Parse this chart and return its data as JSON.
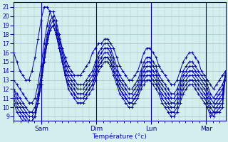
{
  "title": "",
  "xlabel": "Température (°c)",
  "ylabel": "",
  "bg_color": "#d4eeed",
  "grid_color": "#a8cccc",
  "line_color": "#0000bb",
  "marker": "+",
  "ylim": [
    8.5,
    21.5
  ],
  "yticks": [
    9,
    10,
    11,
    12,
    13,
    14,
    15,
    16,
    17,
    18,
    19,
    20,
    21
  ],
  "xtick_labels": [
    "Sam",
    "Dim",
    "Lun",
    "Mar"
  ],
  "xtick_positions": [
    24,
    72,
    120,
    168
  ],
  "xlim": [
    0,
    185
  ],
  "n_hours": 185,
  "curves": [
    [
      16.0,
      15.0,
      14.0,
      13.5,
      13.0,
      13.0,
      14.0,
      15.5,
      17.5,
      19.5,
      21.0,
      21.0,
      20.5,
      19.5,
      18.5,
      17.5,
      16.5,
      15.5,
      14.5,
      14.0,
      13.5,
      13.5,
      13.5,
      14.0,
      14.5,
      15.0,
      16.0,
      16.5,
      17.0,
      17.0,
      17.5,
      17.5,
      17.0,
      16.5,
      15.5,
      14.5,
      14.0,
      13.5,
      13.0,
      13.0,
      13.5,
      14.0,
      15.0,
      16.0,
      16.5,
      16.5,
      16.0,
      15.5,
      14.5,
      14.0,
      13.5,
      13.0,
      12.5,
      12.5,
      13.0,
      14.0,
      15.0,
      15.5,
      16.0,
      16.0,
      15.5,
      15.0,
      14.0,
      13.5,
      13.0,
      12.5,
      12.0,
      12.5,
      13.0,
      13.5,
      14.0
    ],
    [
      13.0,
      12.5,
      12.0,
      11.5,
      11.0,
      10.5,
      10.5,
      11.0,
      12.5,
      14.5,
      17.0,
      19.0,
      20.5,
      20.5,
      19.5,
      18.0,
      16.5,
      15.0,
      14.0,
      13.5,
      13.0,
      12.5,
      12.5,
      12.5,
      13.0,
      13.5,
      14.0,
      15.0,
      16.0,
      16.5,
      17.0,
      17.0,
      16.5,
      15.5,
      14.5,
      13.5,
      13.0,
      12.5,
      12.0,
      12.0,
      12.5,
      13.0,
      14.0,
      15.0,
      15.5,
      15.5,
      15.0,
      14.5,
      13.5,
      13.0,
      12.5,
      12.0,
      11.5,
      11.5,
      12.0,
      13.0,
      14.0,
      14.5,
      15.0,
      15.0,
      14.5,
      14.0,
      13.5,
      13.0,
      12.5,
      11.5,
      11.0,
      11.5,
      12.0,
      12.5,
      13.5
    ],
    [
      12.0,
      11.5,
      11.0,
      10.5,
      10.0,
      9.5,
      9.5,
      10.0,
      11.5,
      13.5,
      16.0,
      18.0,
      19.5,
      20.0,
      19.0,
      17.5,
      16.0,
      14.5,
      13.5,
      13.0,
      12.5,
      12.0,
      12.0,
      12.0,
      12.5,
      13.0,
      13.5,
      14.5,
      15.5,
      16.0,
      16.5,
      16.5,
      16.0,
      15.0,
      14.0,
      13.0,
      12.5,
      12.0,
      11.5,
      11.5,
      12.0,
      12.5,
      13.5,
      14.5,
      15.0,
      15.0,
      14.5,
      14.0,
      13.0,
      12.5,
      12.0,
      11.5,
      11.0,
      11.0,
      11.5,
      12.5,
      13.5,
      14.0,
      14.5,
      14.5,
      14.0,
      13.5,
      13.0,
      12.5,
      12.0,
      11.0,
      10.5,
      11.0,
      11.5,
      12.0,
      13.0
    ],
    [
      12.0,
      11.0,
      10.5,
      10.0,
      9.5,
      9.0,
      9.0,
      9.5,
      11.0,
      13.0,
      15.5,
      17.5,
      19.0,
      19.5,
      18.5,
      17.0,
      15.5,
      14.0,
      13.0,
      12.5,
      12.0,
      11.5,
      11.5,
      11.5,
      12.0,
      12.5,
      13.0,
      14.0,
      15.0,
      15.5,
      16.0,
      16.0,
      15.5,
      14.5,
      13.5,
      12.5,
      12.0,
      11.5,
      11.0,
      11.0,
      11.5,
      12.0,
      13.0,
      14.0,
      14.5,
      14.5,
      14.0,
      13.5,
      12.5,
      12.0,
      11.5,
      11.0,
      10.5,
      10.5,
      11.0,
      12.0,
      13.0,
      13.5,
      14.0,
      14.0,
      13.5,
      13.0,
      12.5,
      12.0,
      11.5,
      10.5,
      10.0,
      10.5,
      11.0,
      11.5,
      13.5
    ],
    [
      11.5,
      10.5,
      10.0,
      9.5,
      9.0,
      8.5,
      8.5,
      9.0,
      10.5,
      12.5,
      15.0,
      17.0,
      18.5,
      19.0,
      18.0,
      16.5,
      15.0,
      13.5,
      12.5,
      12.0,
      11.5,
      11.0,
      11.0,
      11.0,
      11.5,
      12.0,
      12.5,
      13.5,
      14.5,
      15.0,
      15.5,
      15.5,
      15.0,
      14.0,
      13.0,
      12.0,
      11.5,
      11.0,
      10.5,
      10.5,
      11.0,
      11.5,
      12.5,
      13.5,
      14.0,
      14.0,
      13.5,
      13.0,
      12.0,
      11.5,
      11.0,
      10.5,
      10.0,
      10.0,
      10.5,
      11.5,
      12.5,
      13.0,
      13.5,
      13.5,
      13.0,
      12.5,
      12.0,
      11.5,
      11.0,
      10.0,
      9.5,
      10.0,
      10.5,
      11.0,
      14.0
    ],
    [
      11.0,
      10.0,
      9.5,
      9.0,
      8.5,
      8.5,
      8.5,
      9.0,
      10.5,
      12.5,
      15.0,
      17.0,
      18.5,
      19.0,
      18.0,
      16.5,
      15.0,
      13.5,
      12.5,
      12.0,
      11.5,
      11.0,
      11.0,
      11.0,
      11.5,
      12.0,
      12.5,
      13.5,
      14.5,
      15.0,
      15.5,
      15.5,
      15.0,
      14.0,
      13.0,
      12.0,
      11.5,
      11.0,
      10.5,
      10.5,
      11.0,
      11.5,
      12.5,
      13.0,
      13.5,
      13.5,
      13.0,
      12.5,
      12.0,
      11.0,
      10.5,
      10.0,
      9.5,
      9.5,
      10.0,
      11.0,
      12.0,
      12.5,
      13.0,
      13.0,
      12.5,
      12.0,
      11.5,
      11.0,
      10.5,
      9.5,
      9.0,
      9.5,
      10.0,
      10.5,
      14.0
    ],
    [
      10.5,
      9.5,
      9.0,
      8.5,
      8.5,
      8.5,
      8.5,
      9.0,
      10.5,
      12.5,
      15.0,
      17.0,
      18.5,
      19.0,
      18.0,
      16.5,
      15.0,
      13.5,
      12.0,
      11.5,
      11.0,
      10.5,
      10.5,
      10.5,
      11.0,
      11.5,
      12.0,
      13.0,
      14.0,
      14.5,
      15.0,
      15.0,
      14.5,
      13.5,
      12.5,
      11.5,
      11.0,
      10.5,
      10.0,
      10.0,
      10.5,
      11.0,
      12.0,
      12.5,
      13.0,
      13.0,
      12.5,
      12.0,
      11.5,
      10.5,
      10.0,
      9.5,
      9.0,
      9.0,
      9.5,
      10.5,
      11.5,
      12.0,
      12.5,
      12.5,
      12.0,
      11.5,
      11.0,
      10.5,
      10.0,
      9.0,
      9.5,
      9.5,
      9.5,
      10.0,
      13.5
    ]
  ]
}
